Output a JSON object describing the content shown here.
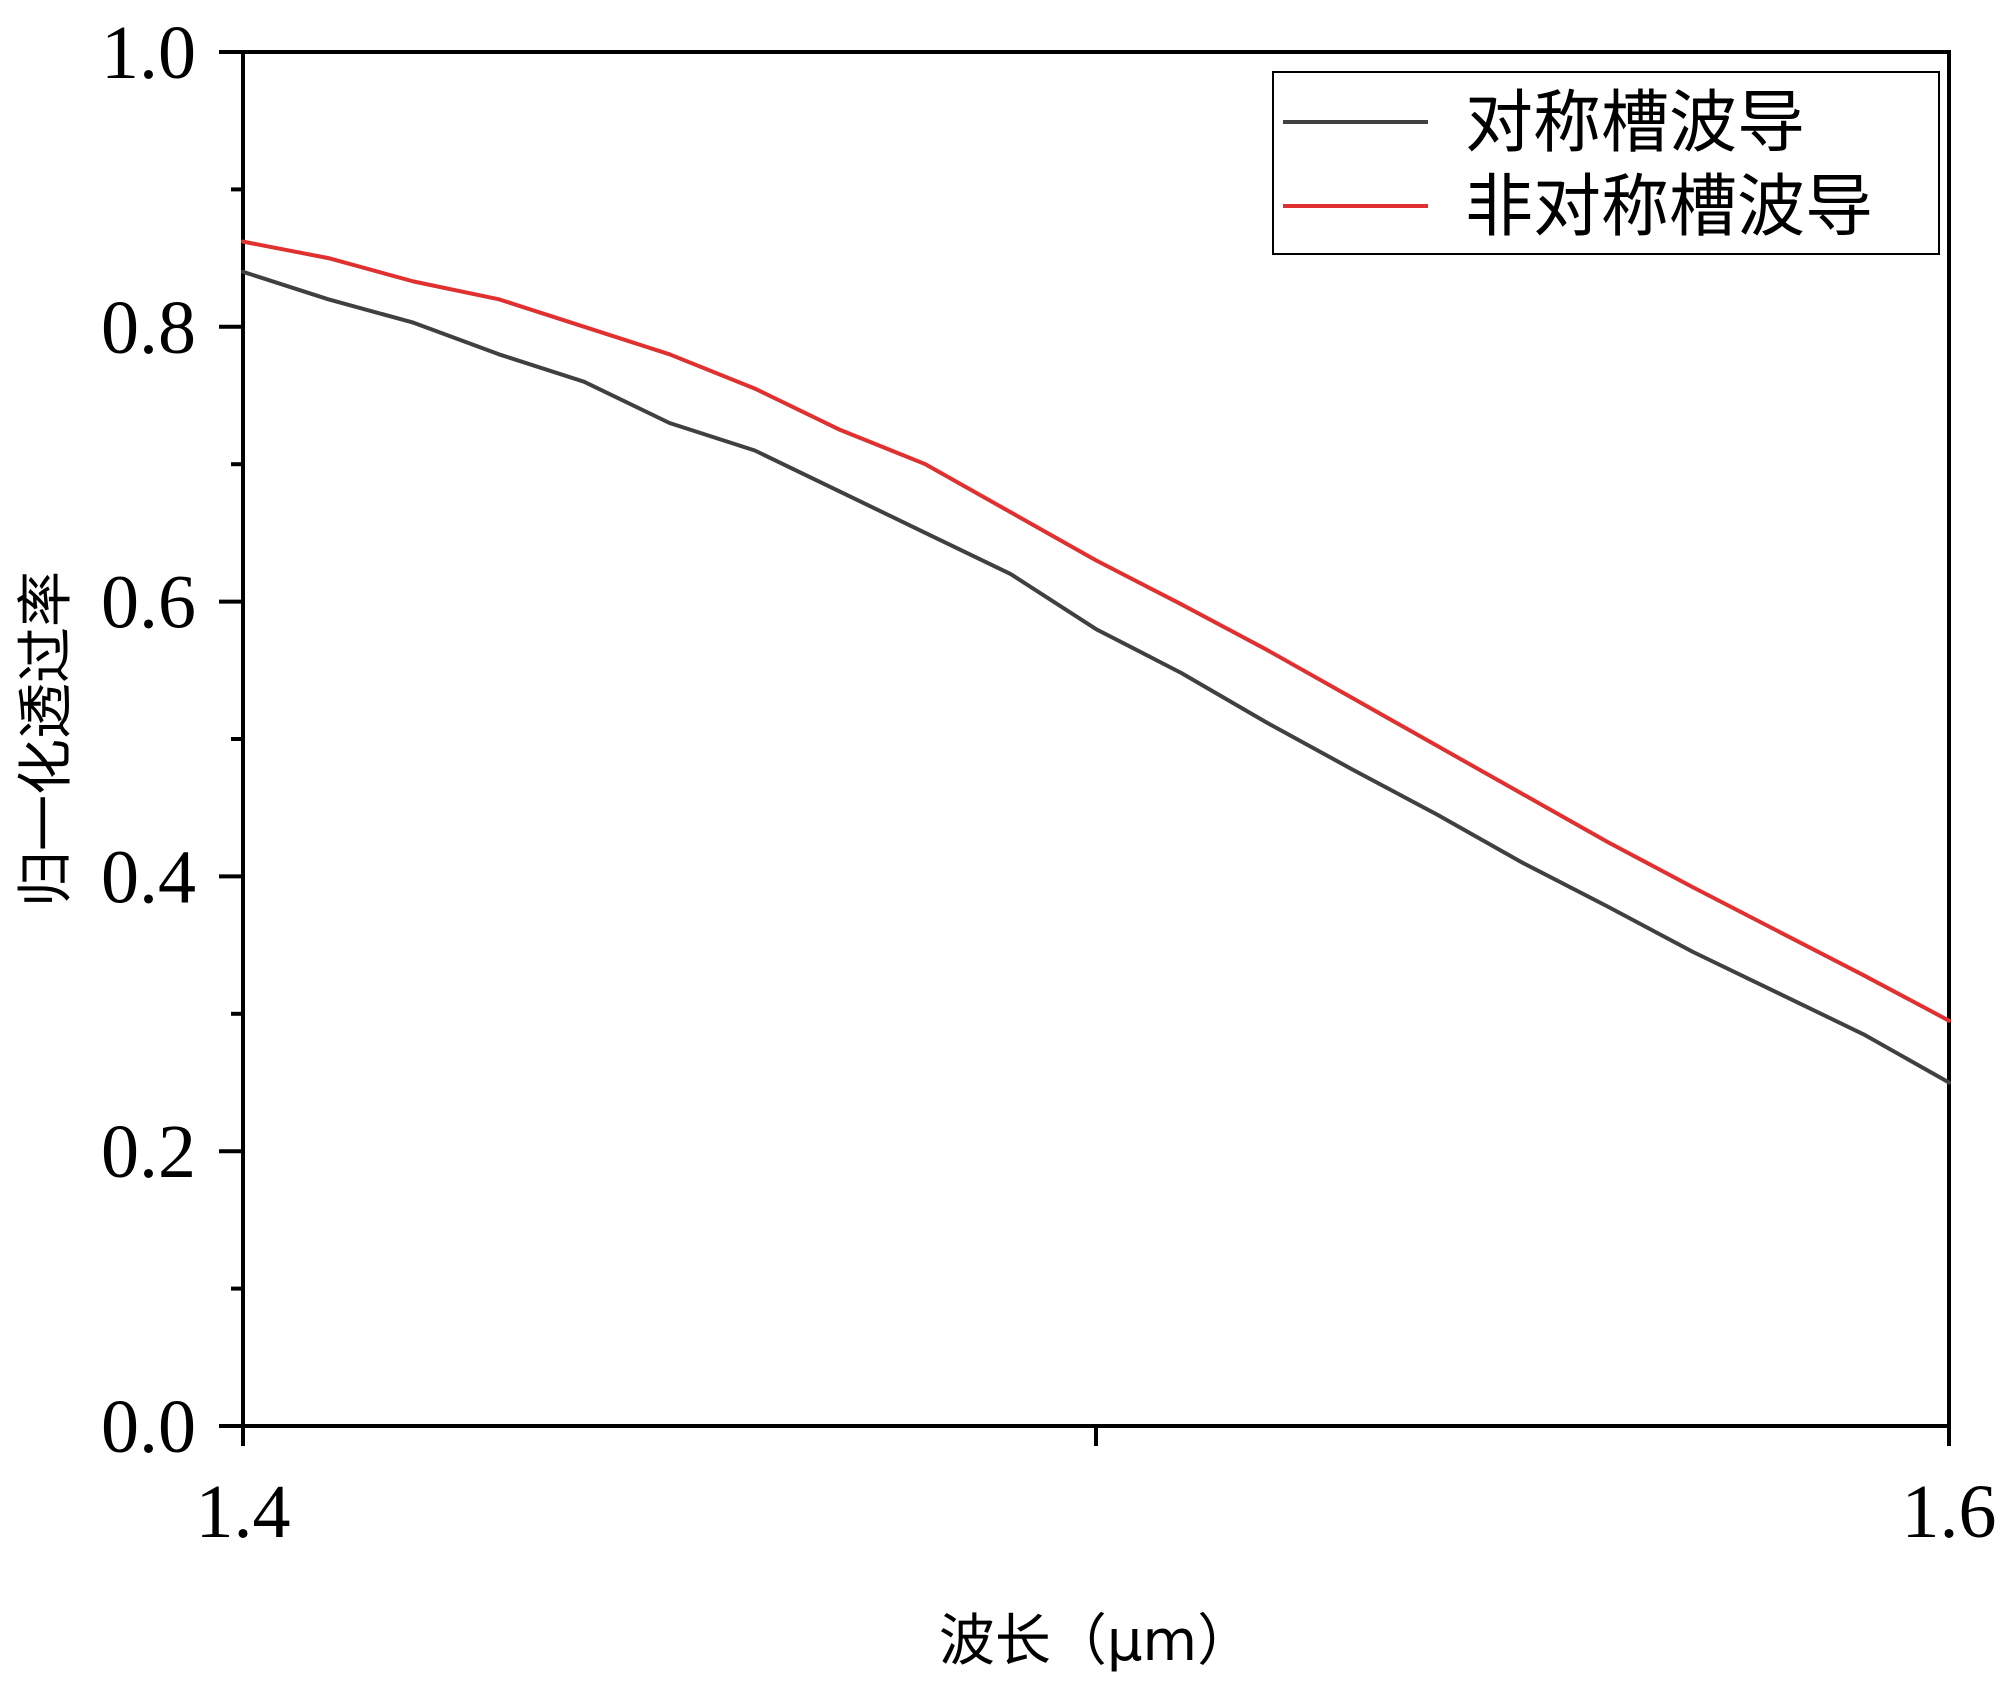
{
  "chart_data": {
    "type": "line",
    "xlabel": "波长（μm）",
    "ylabel": "归一化透过率",
    "xlim": [
      1.4,
      1.6
    ],
    "ylim": [
      0.0,
      1.0
    ],
    "x_ticks": [
      {
        "value": 1.4,
        "label": "1.4"
      },
      {
        "value": 1.5,
        "label": ""
      },
      {
        "value": 1.6,
        "label": "1.6"
      }
    ],
    "y_ticks": [
      {
        "value": 0.0,
        "label": "0.0"
      },
      {
        "value": 0.2,
        "label": "0.2"
      },
      {
        "value": 0.4,
        "label": "0.4"
      },
      {
        "value": 0.6,
        "label": "0.6"
      },
      {
        "value": 0.8,
        "label": "0.8"
      },
      {
        "value": 1.0,
        "label": "1.0"
      }
    ],
    "y_minor_ticks": [
      0.1,
      0.3,
      0.5,
      0.7,
      0.9
    ],
    "legend_position": "top-right",
    "grid": false,
    "x": [
      1.4,
      1.41,
      1.42,
      1.43,
      1.44,
      1.45,
      1.46,
      1.47,
      1.48,
      1.49,
      1.5,
      1.51,
      1.52,
      1.53,
      1.54,
      1.55,
      1.56,
      1.57,
      1.58,
      1.59,
      1.6
    ],
    "series": [
      {
        "name": "对称槽波导",
        "color": "#404040",
        "values": [
          0.84,
          0.82,
          0.803,
          0.78,
          0.76,
          0.73,
          0.71,
          0.68,
          0.65,
          0.62,
          0.58,
          0.548,
          0.512,
          0.478,
          0.445,
          0.41,
          0.378,
          0.345,
          0.315,
          0.285,
          0.25
        ]
      },
      {
        "name": "非对称槽波导",
        "color": "#e03030",
        "values": [
          0.862,
          0.85,
          0.833,
          0.82,
          0.8,
          0.78,
          0.755,
          0.725,
          0.7,
          0.665,
          0.63,
          0.598,
          0.565,
          0.53,
          0.495,
          0.46,
          0.425,
          0.392,
          0.36,
          0.328,
          0.295
        ]
      }
    ]
  }
}
